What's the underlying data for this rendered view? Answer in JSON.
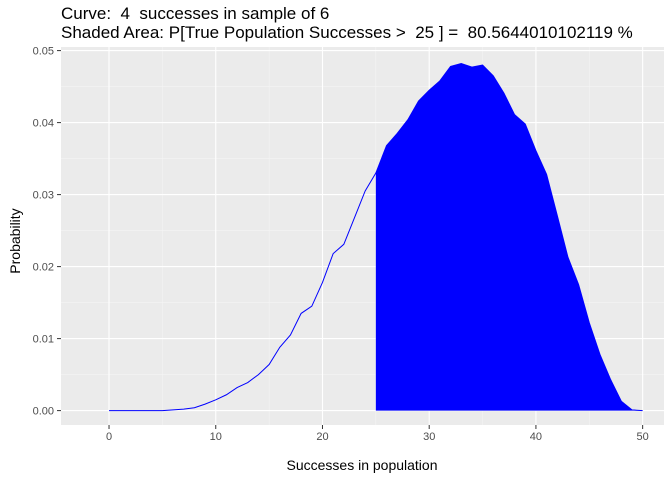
{
  "chart_data": {
    "type": "area",
    "title_line1": "Curve:  4  successes in sample of 6",
    "title_line2": "Shaded Area: P[True Population Successes >  25 ] =  80.5644010102119 %",
    "xlabel": "Successes in population",
    "ylabel": "Probability",
    "xlim": [
      -4.5,
      52
    ],
    "ylim": [
      -0.002,
      0.0505
    ],
    "x_ticks": [
      0,
      10,
      20,
      30,
      40,
      50
    ],
    "x_tick_labels": [
      "0",
      "10",
      "20",
      "30",
      "40",
      "50"
    ],
    "y_ticks": [
      0,
      0.01,
      0.02,
      0.03,
      0.04,
      0.05
    ],
    "y_tick_labels": [
      "0.00",
      "0.01",
      "0.02",
      "0.03",
      "0.04",
      "0.05"
    ],
    "grid": true,
    "shade_from": 25,
    "line_color": "#0000ff",
    "fill_color": "#0000ff",
    "panel_background": "#ebebeb",
    "x": [
      0,
      1,
      2,
      3,
      4,
      5,
      6,
      7,
      8,
      9,
      10,
      11,
      12,
      13,
      14,
      15,
      16,
      17,
      18,
      19,
      20,
      21,
      22,
      23,
      24,
      25,
      26,
      27,
      28,
      29,
      30,
      31,
      32,
      33,
      34,
      35,
      36,
      37,
      38,
      39,
      40,
      41,
      42,
      43,
      44,
      45,
      46,
      47,
      48,
      49,
      50
    ],
    "y": [
      0,
      0,
      0,
      0,
      0,
      0,
      0.0001,
      0.0002,
      0.0004,
      0.0009,
      0.0015,
      0.0022,
      0.0032,
      0.0039,
      0.005,
      0.0064,
      0.0088,
      0.0105,
      0.0135,
      0.0145,
      0.0178,
      0.0218,
      0.0231,
      0.0268,
      0.0305,
      0.033,
      0.0368,
      0.0385,
      0.0404,
      0.043,
      0.0445,
      0.0458,
      0.0478,
      0.0482,
      0.0477,
      0.048,
      0.0465,
      0.0441,
      0.0411,
      0.0398,
      0.0361,
      0.0328,
      0.0271,
      0.0213,
      0.0175,
      0.0122,
      0.0078,
      0.0043,
      0.0013,
      0.0001,
      0
    ]
  }
}
